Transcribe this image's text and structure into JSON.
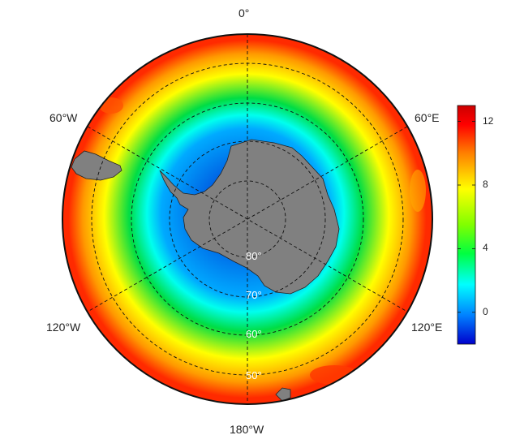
{
  "map": {
    "projection": "south-polar-stereographic",
    "ocean_field_colors": [
      "#0022cc",
      "#00aaff",
      "#00ffee",
      "#00dd44",
      "#ffff00",
      "#ff9900",
      "#ff2a00"
    ],
    "land_color": "#808080",
    "longitude_labels": {
      "top": "0°",
      "upper_left": "60°W",
      "upper_right": "60°E",
      "lower_left": "120°W",
      "lower_right": "120°E",
      "bottom": "180°W"
    },
    "latitude_labels": [
      "80°",
      "70°",
      "60°",
      "50°"
    ]
  },
  "colorbar": {
    "min": -2,
    "max": 13,
    "ticks": [
      "0",
      "4",
      "8",
      "12"
    ],
    "tick_values": [
      0,
      4,
      8,
      12
    ],
    "colors": [
      "#0000cc",
      "#0080ff",
      "#00ffff",
      "#00ff40",
      "#80ff00",
      "#ffff00",
      "#ff8000",
      "#ff0000",
      "#cc0000"
    ]
  }
}
